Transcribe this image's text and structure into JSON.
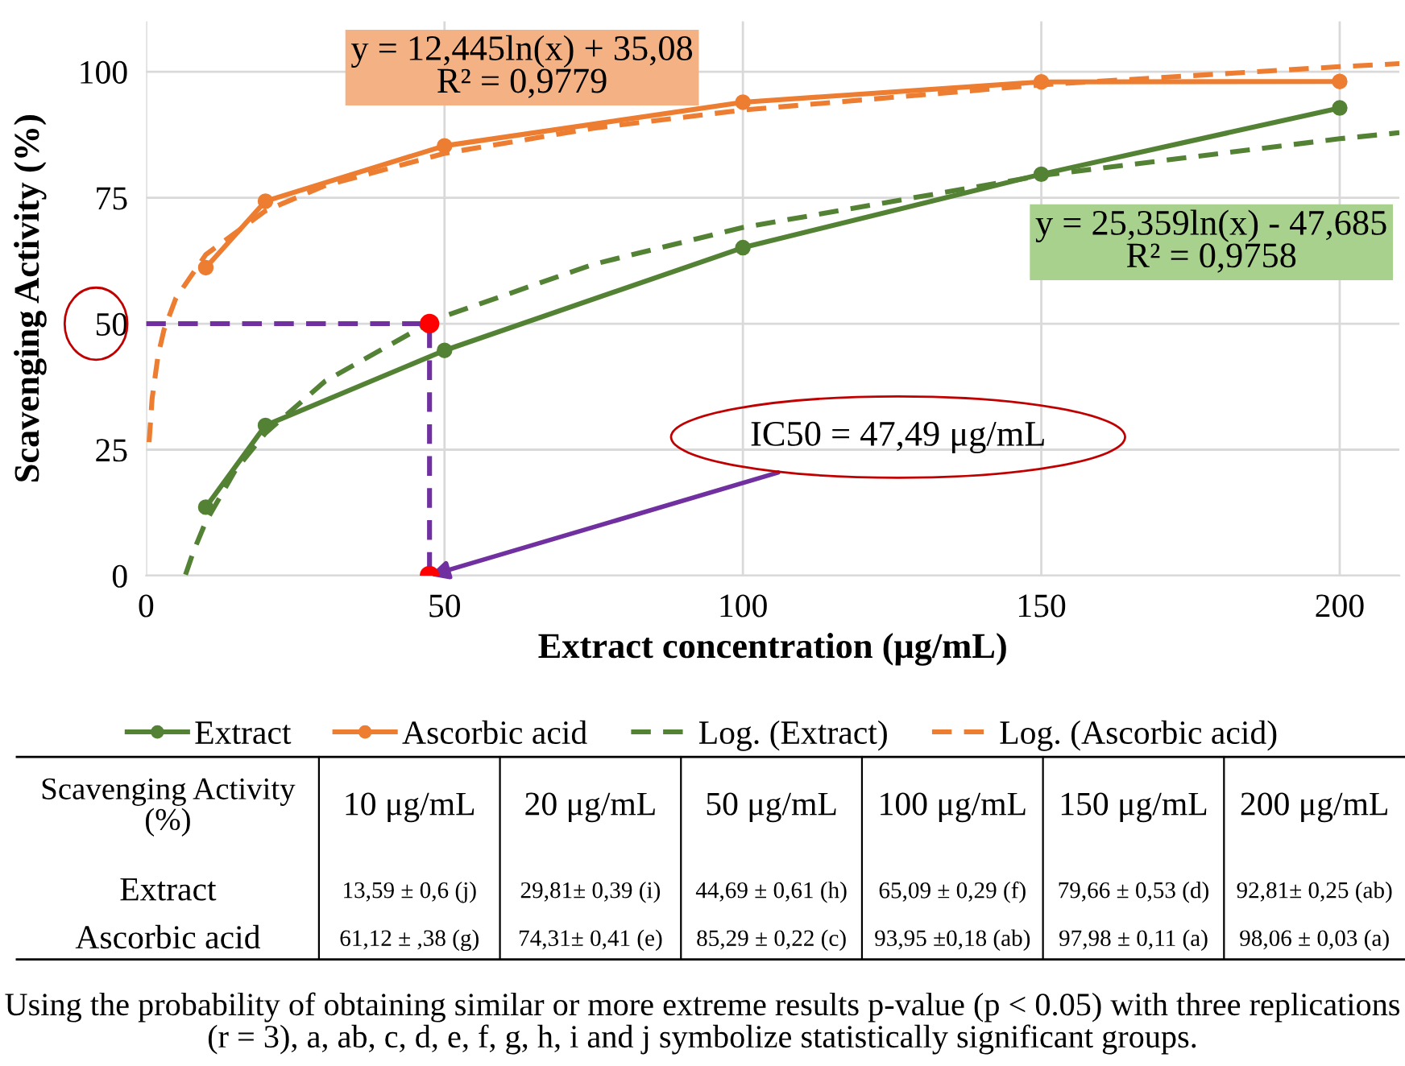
{
  "chart_data": {
    "type": "line",
    "xlabel": "Extract concentration (μg/mL)",
    "ylabel": "Scavenging Activity (%)",
    "x": [
      10,
      20,
      50,
      100,
      150,
      200
    ],
    "series": [
      {
        "name": "Extract",
        "color": "#548235",
        "marker": "circle",
        "line_style": "solid",
        "values": [
          13.59,
          29.81,
          44.69,
          65.09,
          79.66,
          92.81
        ]
      },
      {
        "name": "Ascorbic acid",
        "color": "#ed7d31",
        "marker": "circle",
        "line_style": "solid",
        "values": [
          61.12,
          74.31,
          85.29,
          93.95,
          97.98,
          98.06
        ]
      },
      {
        "name": "Log. (Extract)",
        "color": "#548235",
        "marker": "none",
        "line_style": "dashed",
        "x": [
          6.6,
          8,
          10,
          15,
          20,
          30,
          47.49,
          50,
          75,
          100,
          150,
          200,
          210
        ],
        "values": [
          0.2,
          5.0,
          10.7,
          21.0,
          28.3,
          38.6,
          50.2,
          51.5,
          61.8,
          69.1,
          79.4,
          86.7,
          87.9
        ]
      },
      {
        "name": "Log. (Ascorbic acid)",
        "color": "#ed7d31",
        "marker": "none",
        "line_style": "dashed",
        "x": [
          0.5,
          1,
          2,
          3,
          5,
          10,
          20,
          30,
          50,
          75,
          100,
          150,
          200,
          210
        ],
        "values": [
          26.5,
          35.1,
          43.7,
          48.8,
          55.1,
          63.7,
          72.4,
          77.4,
          83.8,
          88.8,
          92.4,
          97.4,
          101.0,
          101.6
        ]
      },
      {
        "color": "#7030a0",
        "marker": "none",
        "line_style": "dashed",
        "x": [
          0,
          47.49,
          47.49
        ],
        "values": [
          50,
          50,
          0
        ]
      },
      {
        "type": "scatter",
        "color": "#ff0000",
        "marker": "circle",
        "x": [
          47.49,
          47.49
        ],
        "values": [
          50,
          0
        ]
      }
    ],
    "xlim": [
      0,
      210
    ],
    "ylim": [
      0,
      110
    ],
    "xticks": [
      0,
      50,
      100,
      150,
      200
    ],
    "yticks": [
      0,
      25,
      50,
      75,
      100
    ],
    "grid": true,
    "legend": "bottom",
    "annotations": [
      "y = 12,445ln(x) + 35,08\nR² = 0,9779",
      "y = 25,359ln(x) - 47,685\nR² = 0,9758",
      {
        "text": "IC50 = 47,49 μg/mL",
        "x": 47.49,
        "y": 0
      },
      "Scavenging Activity\n(%)",
      "10 μg/mL",
      "20 μg/mL",
      "50 μg/mL",
      "100 μg/mL",
      "150 μg/mL",
      "200 μg/mL",
      "13,59 ± 0,6 (j)",
      "29,81± 0,39 (i)",
      "44,69 ± 0,61 (h)",
      "65,09 ± 0,29 (f)",
      "79,66 ± 0,53 (d)",
      "92,81± 0,25 (ab)",
      "61,12 ± ,38 (g)",
      "74,31± 0,41 (e)",
      "85,29 ± 0,22 (c)",
      "93,95 ±0,18 (ab)",
      "97,98 ± 0,11 (a)",
      "98,06 ± 0,03 (a)",
      "Using the probability of obtaining similar or more extreme results p-value (p < 0.05) with three replications (r = 3), a, ab, c, d, e, f, g, h, i and j symbolize statistically significant groups."
    ]
  }
}
